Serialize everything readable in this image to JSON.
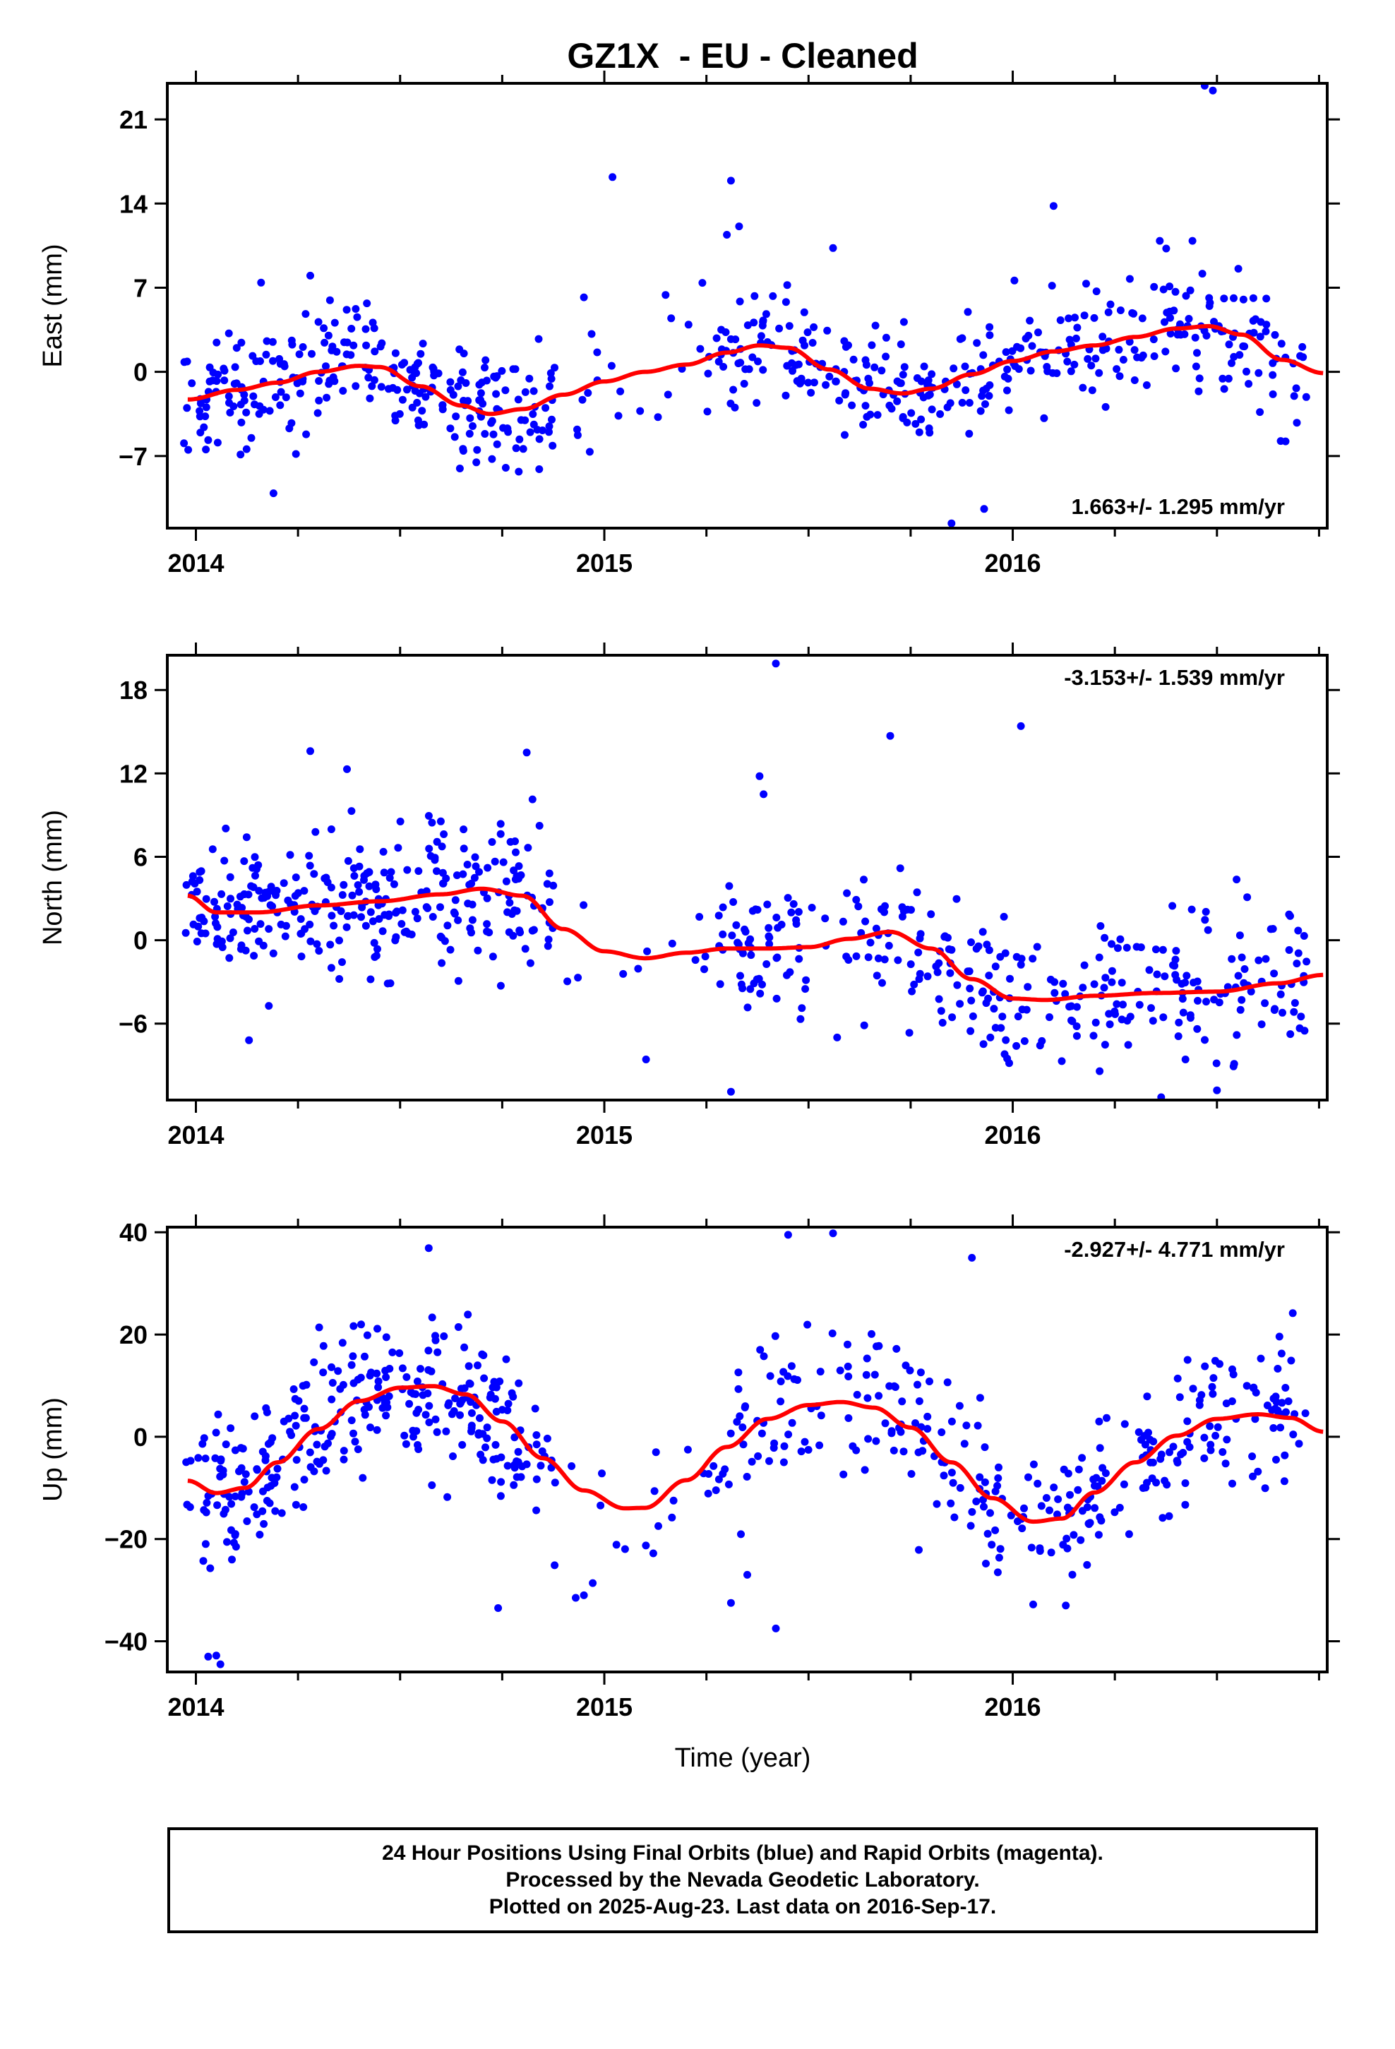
{
  "title": "GZ1X  - EU - Cleaned",
  "x_axis_label": "Time (year)",
  "footer": {
    "line1": "24 Hour Positions Using Final Orbits (blue) and Rapid Orbits (magenta).",
    "line2": "Processed by the Nevada Geodetic Laboratory.",
    "line3": "Plotted on 2025-Aug-23. Last data on 2016-Sep-17."
  },
  "colors": {
    "final_orbits": "#0000ff",
    "fit_curve": "#ff0000",
    "frame": "#000000"
  },
  "chart_data": [
    {
      "type": "scatter",
      "ylabel": "East (mm)",
      "xlim": [
        2013.93,
        2016.77
      ],
      "ylim": [
        -13,
        24
      ],
      "yticks": [
        -7,
        0,
        7,
        14,
        21
      ],
      "xticks": [
        2014,
        2015,
        2016
      ],
      "rate_label": "1.663+/- 1.295 mm/yr",
      "rate_position": "bottom-right",
      "fit": {
        "x": [
          2013.98,
          2014.1,
          2014.2,
          2014.3,
          2014.4,
          2014.45,
          2014.55,
          2014.65,
          2014.72,
          2014.8,
          2014.9,
          2015.0,
          2015.1,
          2015.2,
          2015.3,
          2015.38,
          2015.45,
          2015.55,
          2015.65,
          2015.73,
          2015.8,
          2015.9,
          2016.0,
          2016.1,
          2016.2,
          2016.3,
          2016.4,
          2016.48,
          2016.56,
          2016.66,
          2016.76
        ],
        "y": [
          -2.3,
          -1.5,
          -0.9,
          0.0,
          0.5,
          0.4,
          -1.2,
          -2.8,
          -3.5,
          -3.1,
          -1.9,
          -0.8,
          0.0,
          0.6,
          1.6,
          2.2,
          2.0,
          0.2,
          -1.4,
          -1.8,
          -1.4,
          -0.2,
          0.9,
          1.7,
          2.2,
          2.9,
          3.6,
          3.8,
          3.1,
          1.0,
          -0.1
        ]
      },
      "points": {
        "count": 620,
        "seed": 11,
        "noise_sd": 2.4,
        "outliers": [
          [
            2014.19,
            -10.1
          ],
          [
            2015.02,
            16.2
          ],
          [
            2015.31,
            15.9
          ],
          [
            2015.33,
            12.1
          ],
          [
            2015.3,
            11.4
          ],
          [
            2015.93,
            -11.4
          ],
          [
            2015.85,
            -12.6
          ],
          [
            2016.49,
            23.4
          ],
          [
            2016.47,
            23.8
          ],
          [
            2016.1,
            13.8
          ],
          [
            2016.44,
            10.9
          ],
          [
            2016.36,
            10.9
          ],
          [
            2015.56,
            10.3
          ],
          [
            2014.28,
            8.0
          ],
          [
            2014.95,
            6.2
          ],
          [
            2015.15,
            6.4
          ],
          [
            2015.24,
            7.4
          ]
        ]
      }
    },
    {
      "type": "scatter",
      "ylabel": "North (mm)",
      "xlim": [
        2013.93,
        2016.77
      ],
      "ylim": [
        -11.5,
        20.5
      ],
      "yticks": [
        -6,
        0,
        6,
        12,
        18
      ],
      "xticks": [
        2014,
        2015,
        2016
      ],
      "rate_label": "-3.153+/- 1.539 mm/yr",
      "rate_position": "top-right",
      "fit": {
        "x": [
          2013.98,
          2014.05,
          2014.15,
          2014.3,
          2014.45,
          2014.6,
          2014.7,
          2014.8,
          2014.9,
          2015.0,
          2015.1,
          2015.2,
          2015.3,
          2015.4,
          2015.5,
          2015.6,
          2015.7,
          2015.8,
          2015.9,
          2016.0,
          2016.08,
          2016.2,
          2016.35,
          2016.5,
          2016.65,
          2016.76
        ],
        "y": [
          3.2,
          2.0,
          2.0,
          2.5,
          2.8,
          3.3,
          3.7,
          3.2,
          0.8,
          -0.8,
          -1.3,
          -0.9,
          -0.6,
          -0.6,
          -0.5,
          0.1,
          0.6,
          -0.6,
          -2.8,
          -4.2,
          -4.3,
          -4.0,
          -3.8,
          -3.7,
          -3.1,
          -2.5
        ]
      },
      "points": {
        "count": 620,
        "seed": 23,
        "noise_sd": 2.5,
        "outliers": [
          [
            2015.42,
            19.9
          ],
          [
            2016.02,
            15.4
          ],
          [
            2015.7,
            14.7
          ],
          [
            2014.28,
            13.6
          ],
          [
            2014.81,
            13.5
          ],
          [
            2014.37,
            12.3
          ],
          [
            2015.38,
            11.8
          ],
          [
            2015.39,
            10.5
          ],
          [
            2015.31,
            -10.9
          ],
          [
            2016.5,
            -10.8
          ],
          [
            2014.13,
            -7.2
          ],
          [
            2015.57,
            -7.0
          ],
          [
            2016.12,
            -8.7
          ],
          [
            2015.98,
            -8.2
          ]
        ]
      }
    },
    {
      "type": "scatter",
      "ylabel": "Up (mm)",
      "xlim": [
        2013.93,
        2016.77
      ],
      "ylim": [
        -46,
        41
      ],
      "yticks": [
        -40,
        -20,
        0,
        20,
        40
      ],
      "xticks": [
        2014,
        2015,
        2016
      ],
      "rate_label": "-2.927+/- 4.771 mm/yr",
      "rate_position": "top-right",
      "fit": {
        "x": [
          2013.98,
          2014.05,
          2014.12,
          2014.2,
          2014.3,
          2014.4,
          2014.5,
          2014.58,
          2014.66,
          2014.75,
          2014.85,
          2014.95,
          2015.05,
          2015.1,
          2015.2,
          2015.3,
          2015.4,
          2015.5,
          2015.58,
          2015.66,
          2015.75,
          2015.85,
          2015.95,
          2016.05,
          2016.12,
          2016.2,
          2016.3,
          2016.4,
          2016.5,
          2016.6,
          2016.68,
          2016.76
        ],
        "y": [
          -8.6,
          -11.0,
          -10.0,
          -5.0,
          1.5,
          7.0,
          9.6,
          9.9,
          8.3,
          3.0,
          -4.2,
          -10.5,
          -14.0,
          -13.9,
          -8.5,
          -2.0,
          3.5,
          6.2,
          6.8,
          5.7,
          1.8,
          -5.0,
          -12.0,
          -16.6,
          -16.0,
          -10.9,
          -5.0,
          0.2,
          3.5,
          4.4,
          3.7,
          1.0
        ]
      },
      "points": {
        "count": 620,
        "seed": 37,
        "noise_sd": 7.5,
        "outliers": [
          [
            2014.03,
            -43.0
          ],
          [
            2014.06,
            -44.5
          ],
          [
            2014.05,
            -42.8
          ],
          [
            2014.57,
            36.9
          ],
          [
            2015.45,
            39.5
          ],
          [
            2015.56,
            39.8
          ],
          [
            2015.9,
            35.0
          ],
          [
            2015.42,
            -37.5
          ],
          [
            2014.74,
            -33.5
          ],
          [
            2016.05,
            -32.8
          ],
          [
            2016.13,
            -33.0
          ],
          [
            2015.31,
            -32.5
          ],
          [
            2015.35,
            -27.0
          ],
          [
            2014.95,
            -31.0
          ],
          [
            2014.93,
            -31.5
          ]
        ]
      }
    }
  ]
}
